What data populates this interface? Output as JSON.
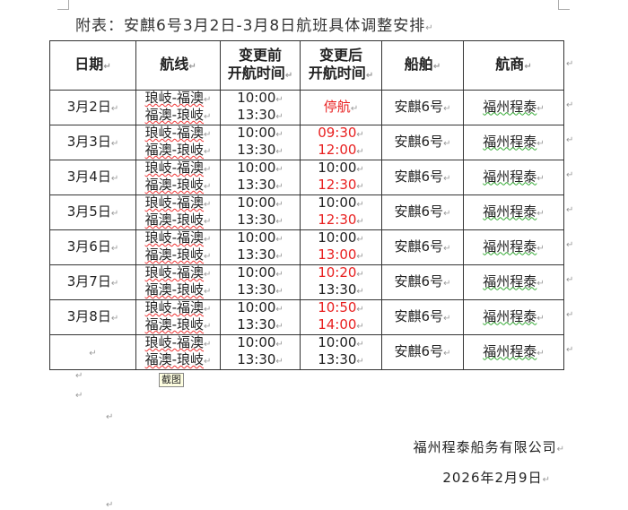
{
  "title": "附表：安麒6号3月2日-3月8日航班具体调整安排",
  "headers": [
    "日期",
    "航线",
    "变更前\n开航时间",
    "变更后\n开航时间",
    "船舶",
    "航商"
  ],
  "rows": [
    {
      "date": "3月2日",
      "route1": "琅岐-福澳",
      "route2": "福澳-琅岐",
      "before1": "10:00",
      "before2": "13:30",
      "after1": "停航",
      "after2": "",
      "after1_red": true,
      "after2_red": false,
      "ship": "安麒6号",
      "company": "福州程泰"
    },
    {
      "date": "3月3日",
      "route1": "琅岐-福澳",
      "route2": "福澳-琅岐",
      "before1": "10:00",
      "before2": "13:30",
      "after1": "09:30",
      "after2": "12:00",
      "after1_red": true,
      "after2_red": true,
      "ship": "安麒6号",
      "company": "福州程泰"
    },
    {
      "date": "3月4日",
      "route1": "琅岐-福澳",
      "route2": "福澳-琅岐",
      "before1": "10:00",
      "before2": "13:30",
      "after1": "10:00",
      "after2": "12:30",
      "after1_red": false,
      "after2_red": true,
      "ship": "安麒6号",
      "company": "福州程泰"
    },
    {
      "date": "3月5日",
      "route1": "琅岐-福澳",
      "route2": "福澳-琅岐",
      "before1": "10:00",
      "before2": "13:30",
      "after1": "10:00",
      "after2": "12:30",
      "after1_red": false,
      "after2_red": true,
      "ship": "安麒6号",
      "company": "福州程泰"
    },
    {
      "date": "3月6日",
      "route1": "琅岐-福澳",
      "route2": "福澳-琅岐",
      "before1": "10:00",
      "before2": "13:30",
      "after1": "10:00",
      "after2": "13:00",
      "after1_red": false,
      "after2_red": true,
      "ship": "安麒6号",
      "company": "福州程泰"
    },
    {
      "date": "3月7日",
      "route1": "琅岐-福澳",
      "route2": "福澳-琅岐",
      "before1": "10:00",
      "before2": "13:30",
      "after1": "10:20",
      "after2": "13:30",
      "after1_red": true,
      "after2_red": false,
      "ship": "安麒6号",
      "company": "福州程泰"
    },
    {
      "date": "3月8日",
      "route1": "琅岐-福澳",
      "route2": "福澳-琅岐",
      "before1": "10:00",
      "before2": "13:30",
      "after1": "10:50",
      "after2": "14:00",
      "after1_red": true,
      "after2_red": true,
      "ship": "安麒6号",
      "company": "福州程泰"
    },
    {
      "date": "",
      "route1": "琅岐-福澳",
      "route2": "福澳-琅岐",
      "before1": "10:00",
      "before2": "13:30",
      "after1": "10:00",
      "after2": "13:30",
      "after1_red": false,
      "after2_red": false,
      "ship": "安麒6号",
      "company": "福州程泰"
    }
  ],
  "tooltip": "截图",
  "footer": {
    "company": "福州程泰船务有限公司",
    "date": "2026年2月9日"
  },
  "colors": {
    "changed": "#e82020"
  },
  "paragraph_mark": "↵"
}
